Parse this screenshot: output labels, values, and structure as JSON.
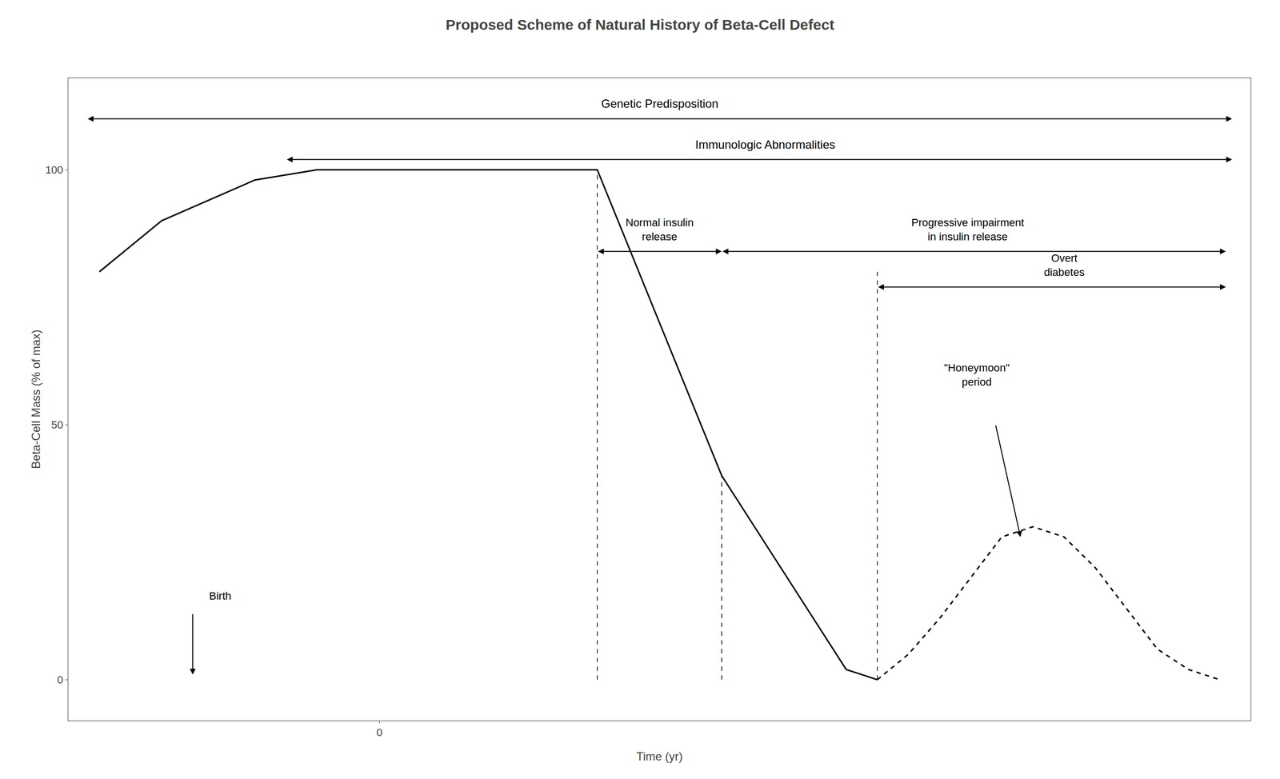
{
  "chart_data": {
    "type": "line",
    "title": "Proposed Scheme of Natural History of Beta-Cell Defect",
    "xlabel": "Time (yr)",
    "ylabel": "Beta-Cell Mass (% of max)",
    "series": [
      {
        "x": [
          -4.5,
          -3.5,
          -2.0,
          -1.0,
          0.0,
          1.0,
          2.0,
          3.5,
          5.5,
          7.5,
          8.0
        ],
        "values": [
          80,
          90,
          98,
          100,
          100,
          100,
          100,
          100,
          40,
          2,
          0
        ],
        "color": "#000000",
        "line_style": "solid"
      },
      {
        "x": [
          8.0,
          8.5,
          9.0,
          9.5,
          10.0,
          10.5,
          11.0,
          11.5,
          12.0,
          12.5,
          13.0,
          13.5
        ],
        "values": [
          0,
          5,
          12,
          20,
          28,
          30,
          28,
          22,
          14,
          6,
          2,
          0
        ],
        "color": "#000000",
        "line_style": "dashed"
      },
      {
        "x": [
          3.5,
          3.5
        ],
        "values": [
          0,
          100
        ],
        "color": "#000000",
        "line_style": "dashed"
      },
      {
        "x": [
          5.5,
          5.5
        ],
        "values": [
          0,
          40
        ],
        "color": "#000000",
        "line_style": "dashed"
      },
      {
        "x": [
          8.0,
          8.0
        ],
        "values": [
          0,
          80
        ],
        "color": "#000000",
        "line_style": "dashed"
      }
    ],
    "xlim": [
      -5,
      14
    ],
    "ylim": [
      -8,
      118
    ],
    "xticks": [
      0
    ],
    "yticks": [
      0,
      50,
      100
    ],
    "grid": false,
    "annotations": [
      {
        "text": "Genetic Predisposition"
      },
      {
        "text": "Immunologic Abnormalities"
      },
      {
        "text": "Normal insulin\nrelease",
        "x_start": 3.5,
        "x_end": 5.5
      },
      {
        "text": "Progressive impairment\nin insulin release",
        "x_start": 5.5
      },
      {
        "text": "Overt\ndiabetes",
        "x_start": 8.0
      },
      {
        "text": "Birth",
        "x": -3
      },
      {
        "text": "\"Honeymoon\"\nperiod"
      }
    ]
  }
}
